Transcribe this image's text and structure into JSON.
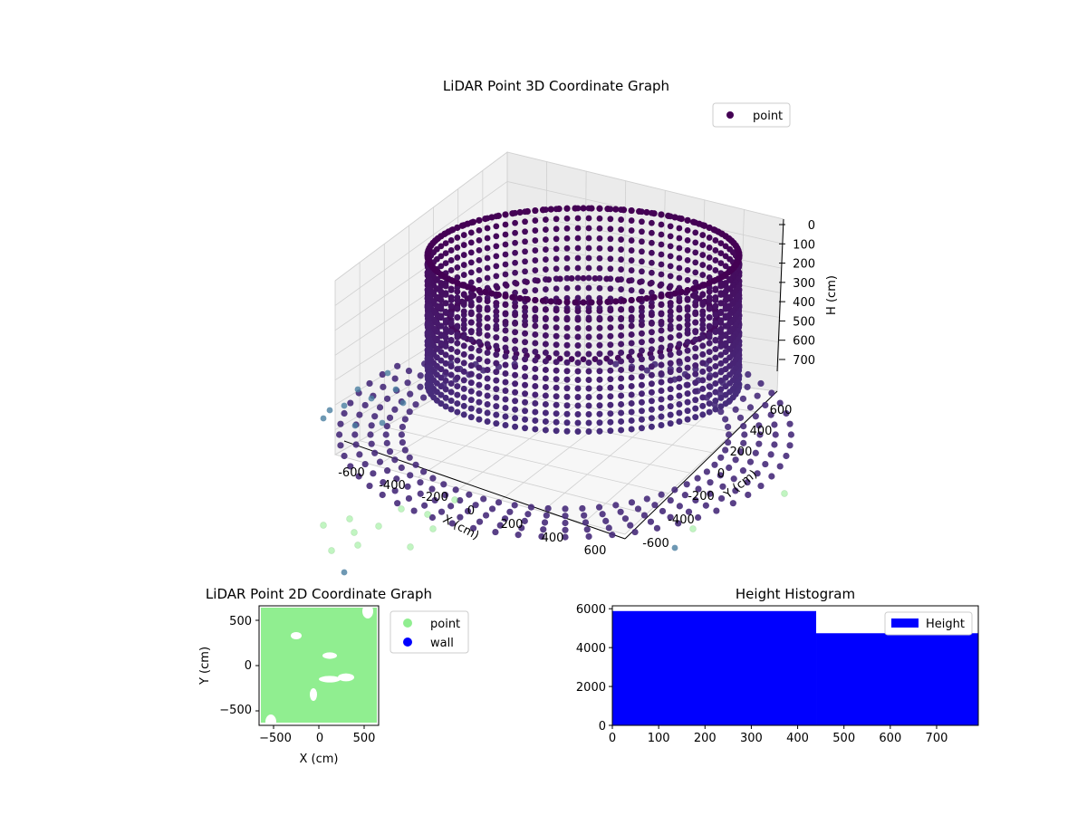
{
  "chart_data": [
    {
      "type": "scatter3d",
      "title": "LiDAR Point 3D Coordinate Graph",
      "xlabel": "X (cm)",
      "ylabel": "Y (cm)",
      "zlabel": "H (cm)",
      "xlim": [
        -700,
        700
      ],
      "ylim": [
        -700,
        700
      ],
      "zlim": [
        0,
        780
      ],
      "zaxis_inverted": true,
      "x_ticks": [
        "-600",
        "-400",
        "-200",
        "0",
        "200",
        "400",
        "600"
      ],
      "y_ticks": [
        "-600",
        "-400",
        "-200",
        "0",
        "200",
        "400",
        "600"
      ],
      "z_ticks": [
        "0",
        "100",
        "200",
        "300",
        "400",
        "500",
        "600",
        "700"
      ],
      "grid": true,
      "legend": {
        "position": "top-right",
        "entries": [
          {
            "label": "point",
            "color": "#440154"
          }
        ]
      },
      "colormap": "viridis",
      "structure": {
        "ring_radius": 520,
        "ring_height_top": 780,
        "ring_height_bottom": 320,
        "floor_radius": 620
      }
    },
    {
      "type": "scatter",
      "title": "LiDAR Point 2D Coordinate Graph",
      "xlabel": "X (cm)",
      "ylabel": "Y (cm)",
      "xlim": [
        -660,
        660
      ],
      "ylim": [
        -660,
        660
      ],
      "x_ticks": [
        "−500",
        "0",
        "500"
      ],
      "y_ticks": [
        "500",
        "0",
        "−500"
      ],
      "legend": {
        "position": "outside-right",
        "entries": [
          {
            "label": "point",
            "color": "#90ee90"
          },
          {
            "label": "wall",
            "color": "#0000ff"
          }
        ]
      },
      "series": [
        {
          "name": "point",
          "color": "#90ee90",
          "extent": [
            -640,
            640,
            -630,
            640
          ]
        },
        {
          "name": "wall",
          "color": "#0000ff",
          "count": 0
        }
      ]
    },
    {
      "type": "bar",
      "title": "Height Histogram",
      "xlim": [
        0,
        790
      ],
      "ylim": [
        0,
        6150
      ],
      "x_ticks": [
        "0",
        "100",
        "200",
        "300",
        "400",
        "500",
        "600",
        "700"
      ],
      "y_ticks": [
        "0",
        "2000",
        "4000",
        "6000"
      ],
      "legend": {
        "position": "top-right",
        "entries": [
          {
            "label": "Height",
            "color": "#0000ff"
          }
        ]
      },
      "bins": [
        {
          "x0": 0,
          "x1": 440,
          "value": 5880
        },
        {
          "x0": 440,
          "x1": 790,
          "value": 4740
        }
      ],
      "color": "#0000ff"
    }
  ]
}
